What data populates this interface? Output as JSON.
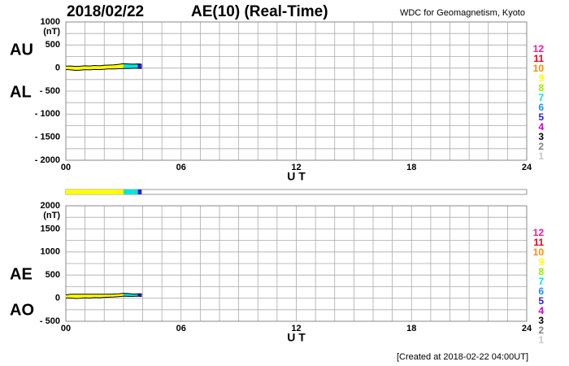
{
  "header": {
    "date": "2018/02/22",
    "title": "AE(10) (Real-Time)",
    "source": "WDC for Geomagnetism, Kyoto"
  },
  "footer": "[Created at 2018-02-22 04:00UT]",
  "chart_data": [
    {
      "type": "band",
      "unit": "(nT)",
      "xlabel": "U T",
      "x": [
        0,
        0.25,
        0.5,
        0.75,
        1,
        1.25,
        1.5,
        1.75,
        2,
        2.25,
        2.5,
        2.75,
        3,
        3.25,
        3.5,
        3.75,
        3.95
      ],
      "series": [
        {
          "name": "AU",
          "values": [
            40,
            45,
            35,
            40,
            50,
            45,
            55,
            50,
            60,
            65,
            70,
            80,
            95,
            90,
            85,
            90,
            85
          ]
        },
        {
          "name": "AL",
          "values": [
            -30,
            -40,
            -50,
            -45,
            -35,
            -40,
            -30,
            -35,
            -25,
            -20,
            -20,
            -15,
            -10,
            -10,
            -5,
            -5,
            -10
          ]
        }
      ],
      "stations": [
        9,
        9,
        9,
        9,
        9,
        9,
        9,
        9,
        9,
        9,
        9,
        9,
        7,
        7,
        7,
        5,
        5
      ],
      "xlim": [
        0,
        24
      ],
      "xticks": [
        {
          "value": 0,
          "label": "00"
        },
        {
          "value": 6,
          "label": "06"
        },
        12,
        18,
        24
      ],
      "xgrid": [
        0,
        1,
        2,
        3,
        4,
        5,
        6,
        7,
        8,
        9,
        10,
        11,
        12,
        13,
        14,
        15,
        16,
        17,
        18,
        19,
        20,
        21,
        22,
        23,
        24
      ],
      "ylim": [
        -2000,
        1000
      ],
      "yticks": [
        1000,
        500,
        0,
        {
          "value": -500,
          "label": "- 500"
        },
        {
          "value": -1000,
          "label": "- 1000"
        },
        {
          "value": -1500,
          "label": "- 1500"
        },
        {
          "value": -2000,
          "label": "- 2000"
        }
      ],
      "ygrid": [
        -2000,
        -1750,
        -1500,
        -1250,
        -1000,
        -750,
        -500,
        -250,
        0,
        250,
        500,
        750,
        1000
      ],
      "legend": [
        {
          "label": 12,
          "color": "#ff1493"
        },
        {
          "label": 11,
          "color": "#e8001c"
        },
        {
          "label": 10,
          "color": "#ff8c00"
        },
        {
          "label": 9,
          "color": "#ffff00"
        },
        {
          "label": 8,
          "color": "#99ee00"
        },
        {
          "label": 7,
          "color": "#00e5d5"
        },
        {
          "label": 6,
          "color": "#1e90ff"
        },
        {
          "label": 5,
          "color": "#3020d0"
        },
        {
          "label": 4,
          "color": "#cc00cc"
        },
        {
          "label": 3,
          "color": "#000000"
        },
        {
          "label": 2,
          "color": "#808080"
        },
        {
          "label": 1,
          "color": "#c8c8c8"
        }
      ]
    },
    {
      "type": "band",
      "unit": "(nT)",
      "xlabel": "U T",
      "x": [
        0,
        0.25,
        0.5,
        0.75,
        1,
        1.25,
        1.5,
        1.75,
        2,
        2.25,
        2.5,
        2.75,
        3,
        3.25,
        3.5,
        3.75,
        3.95
      ],
      "series": [
        {
          "name": "AE",
          "values": [
            70,
            85,
            85,
            85,
            85,
            85,
            85,
            85,
            85,
            85,
            90,
            95,
            105,
            100,
            90,
            95,
            95
          ]
        },
        {
          "name": "AO",
          "values": [
            5,
            2.5,
            -7.5,
            -2.5,
            7.5,
            2.5,
            12.5,
            7.5,
            17.5,
            22.5,
            25,
            32.5,
            42.5,
            40,
            40,
            42.5,
            37.5
          ]
        }
      ],
      "stations": [
        9,
        9,
        9,
        9,
        9,
        9,
        9,
        9,
        9,
        9,
        9,
        9,
        7,
        7,
        7,
        5,
        5
      ],
      "xlim": [
        0,
        24
      ],
      "xticks": [
        {
          "value": 0,
          "label": "00"
        },
        {
          "value": 6,
          "label": "06"
        },
        12,
        18,
        24
      ],
      "xgrid": [
        0,
        1,
        2,
        3,
        4,
        5,
        6,
        7,
        8,
        9,
        10,
        11,
        12,
        13,
        14,
        15,
        16,
        17,
        18,
        19,
        20,
        21,
        22,
        23,
        24
      ],
      "ylim": [
        -500,
        2000
      ],
      "yticks": [
        2000,
        1500,
        1000,
        500,
        0,
        {
          "value": -500,
          "label": "- 500"
        }
      ],
      "ygrid": [
        -500,
        -250,
        0,
        250,
        500,
        750,
        1000,
        1250,
        1500,
        1750,
        2000
      ],
      "legend": [
        {
          "label": 12,
          "color": "#ff1493"
        },
        {
          "label": 11,
          "color": "#e8001c"
        },
        {
          "label": 10,
          "color": "#ff8c00"
        },
        {
          "label": 9,
          "color": "#ffff00"
        },
        {
          "label": 8,
          "color": "#99ee00"
        },
        {
          "label": 7,
          "color": "#00e5d5"
        },
        {
          "label": 6,
          "color": "#1e90ff"
        },
        {
          "label": 5,
          "color": "#3020d0"
        },
        {
          "label": 4,
          "color": "#cc00cc"
        },
        {
          "label": 3,
          "color": "#000000"
        },
        {
          "label": 2,
          "color": "#808080"
        },
        {
          "label": 1,
          "color": "#c8c8c8"
        }
      ]
    }
  ]
}
